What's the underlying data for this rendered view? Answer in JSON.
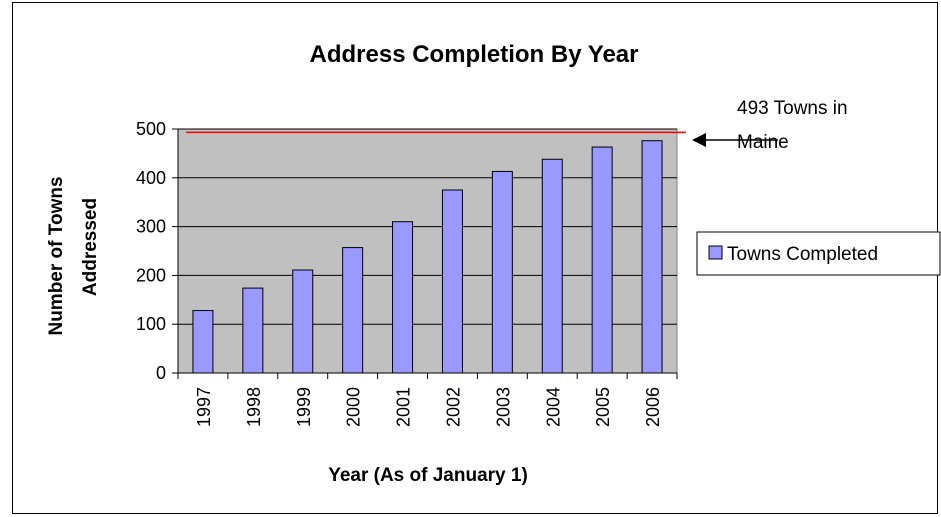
{
  "chart_data": {
    "type": "bar",
    "title": "Address Completion By Year",
    "xlabel": "Year (As of January 1)",
    "ylabel_lines": [
      "Number of Towns",
      "Addressed"
    ],
    "categories": [
      "1997",
      "1998",
      "1999",
      "2000",
      "2001",
      "2002",
      "2003",
      "2004",
      "2005",
      "2006"
    ],
    "series": [
      {
        "name": "Towns Completed",
        "values": [
          128,
          174,
          211,
          257,
          310,
          375,
          413,
          438,
          463,
          476
        ]
      }
    ],
    "ylim": [
      0,
      500
    ],
    "yticks": [
      0,
      100,
      200,
      300,
      400,
      500
    ],
    "grid": true,
    "legend": "right",
    "reference_line": {
      "value": 493
    },
    "annotation": {
      "lines": [
        "493 Towns in",
        "Maine"
      ]
    },
    "colors": {
      "bar_fill": "#9999ff",
      "bar_stroke": "#000000",
      "plot_bg": "#c0c0c0",
      "reference_line": "#ff0000",
      "grid": "#000000"
    }
  }
}
